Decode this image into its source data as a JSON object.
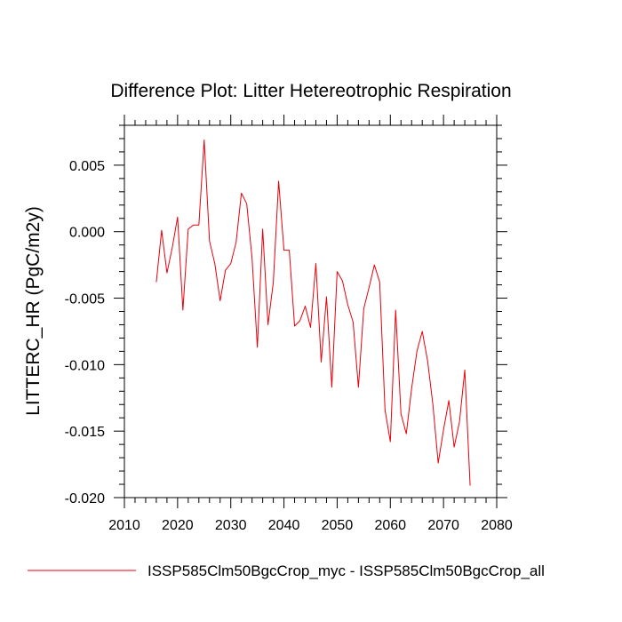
{
  "chart_data": {
    "type": "line",
    "title": "Difference Plot: Litter Hetereotrophic Respiration",
    "xlabel": "",
    "ylabel": "LITTERC_HR  (PgC/m2y)",
    "xlim": [
      2010,
      2080
    ],
    "ylim": [
      -0.02,
      0.008
    ],
    "x_ticks": [
      2010,
      2020,
      2030,
      2040,
      2050,
      2060,
      2070,
      2080
    ],
    "x_tick_labels": [
      "2010",
      "2020",
      "2030",
      "2040",
      "2050",
      "2060",
      "2070",
      "2080"
    ],
    "y_ticks": [
      0.005,
      0.0,
      -0.005,
      -0.01,
      -0.015,
      -0.02
    ],
    "y_tick_labels": [
      "0.005",
      "0.000",
      "-0.005",
      "-0.010",
      "-0.015",
      "-0.020"
    ],
    "grid": false,
    "legend_position": "bottom",
    "series": [
      {
        "name": "ISSP585Clm50BgcCrop_myc - ISSP585Clm50BgcCrop_all",
        "color": "#e8000b",
        "x": [
          2016,
          2017,
          2018,
          2019,
          2020,
          2021,
          2022,
          2023,
          2024,
          2025,
          2026,
          2027,
          2028,
          2029,
          2030,
          2031,
          2032,
          2033,
          2034,
          2035,
          2036,
          2037,
          2038,
          2039,
          2040,
          2041,
          2042,
          2043,
          2044,
          2045,
          2046,
          2047,
          2048,
          2049,
          2050,
          2051,
          2052,
          2053,
          2054,
          2055,
          2056,
          2057,
          2058,
          2059,
          2060,
          2061,
          2062,
          2063,
          2064,
          2065,
          2066,
          2067,
          2068,
          2069,
          2070,
          2071,
          2072,
          2073,
          2074,
          2075
        ],
        "y": [
          -0.0038,
          0.0001,
          -0.0031,
          -0.0012,
          0.0011,
          -0.0059,
          0.0002,
          0.0005,
          0.0005,
          0.0069,
          -0.0007,
          -0.0024,
          -0.0052,
          -0.0029,
          -0.0024,
          -0.0008,
          0.0029,
          0.0021,
          -0.002,
          -0.0087,
          0.0002,
          -0.007,
          -0.0038,
          0.0038,
          -0.0014,
          -0.0014,
          -0.0071,
          -0.0067,
          -0.0056,
          -0.0072,
          -0.0024,
          -0.0098,
          -0.0049,
          -0.0117,
          -0.003,
          -0.0037,
          -0.0055,
          -0.0068,
          -0.0117,
          -0.0058,
          -0.0042,
          -0.0025,
          -0.0038,
          -0.0134,
          -0.0158,
          -0.0059,
          -0.0137,
          -0.0152,
          -0.0118,
          -0.009,
          -0.0075,
          -0.0097,
          -0.013,
          -0.0174,
          -0.0149,
          -0.0127,
          -0.0162,
          -0.0143,
          -0.0104,
          -0.0191
        ]
      }
    ]
  }
}
